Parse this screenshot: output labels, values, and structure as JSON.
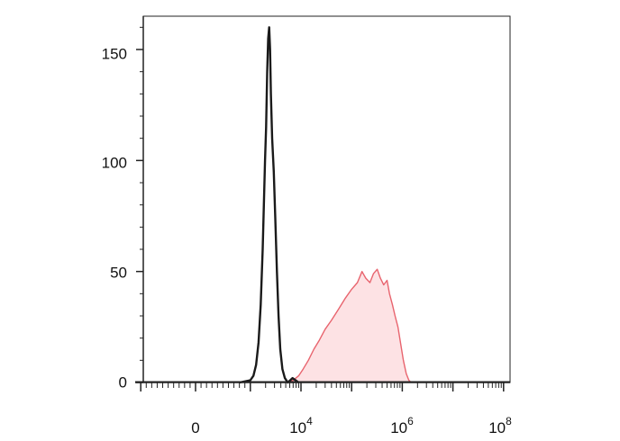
{
  "chart_data": {
    "type": "area",
    "title": "",
    "xlabel": "",
    "ylabel": "",
    "x_scale": "biexponential (log10 above ~10^3)",
    "xlim": [
      -1000,
      100000000
    ],
    "ylim": [
      0,
      165
    ],
    "grid": false,
    "legend": "none",
    "y_ticks": [
      "0",
      "50",
      "100",
      "150"
    ],
    "x_ticks": [
      {
        "base": "0",
        "exp": ""
      },
      {
        "base": "10",
        "exp": "4"
      },
      {
        "base": "10",
        "exp": "6"
      },
      {
        "base": "10",
        "exp": "8"
      }
    ],
    "series": [
      {
        "color": "#1a1a1a",
        "fill": "none",
        "points": [
          [
            800,
            0
          ],
          [
            1000,
            1
          ],
          [
            1150,
            3
          ],
          [
            1300,
            8
          ],
          [
            1450,
            18
          ],
          [
            1600,
            35
          ],
          [
            1750,
            60
          ],
          [
            1850,
            80
          ],
          [
            1950,
            100
          ],
          [
            2050,
            115
          ],
          [
            2150,
            140
          ],
          [
            2250,
            155
          ],
          [
            2350,
            160
          ],
          [
            2450,
            150
          ],
          [
            2550,
            130
          ],
          [
            2700,
            110
          ],
          [
            2900,
            95
          ],
          [
            3100,
            75
          ],
          [
            3350,
            50
          ],
          [
            3600,
            30
          ],
          [
            3900,
            15
          ],
          [
            4300,
            6
          ],
          [
            4800,
            2
          ],
          [
            5500,
            0
          ],
          [
            6800,
            2
          ],
          [
            9000,
            0
          ]
        ]
      },
      {
        "color": "#e8646e",
        "fill": "#fde2e4",
        "points": [
          [
            5500,
            0
          ],
          [
            7000,
            1
          ],
          [
            9000,
            3
          ],
          [
            11000,
            6
          ],
          [
            14000,
            10
          ],
          [
            18000,
            15
          ],
          [
            23000,
            19
          ],
          [
            30000,
            24
          ],
          [
            40000,
            28
          ],
          [
            55000,
            33
          ],
          [
            75000,
            38
          ],
          [
            100000,
            42
          ],
          [
            130000,
            45
          ],
          [
            160000,
            50
          ],
          [
            190000,
            47
          ],
          [
            230000,
            45
          ],
          [
            270000,
            49
          ],
          [
            320000,
            51
          ],
          [
            370000,
            47
          ],
          [
            430000,
            44
          ],
          [
            500000,
            46
          ],
          [
            560000,
            40
          ],
          [
            640000,
            35
          ],
          [
            720000,
            30
          ],
          [
            820000,
            25
          ],
          [
            920000,
            18
          ],
          [
            1050000,
            10
          ],
          [
            1200000,
            4
          ],
          [
            1350000,
            1
          ],
          [
            1500000,
            0
          ]
        ]
      }
    ]
  }
}
